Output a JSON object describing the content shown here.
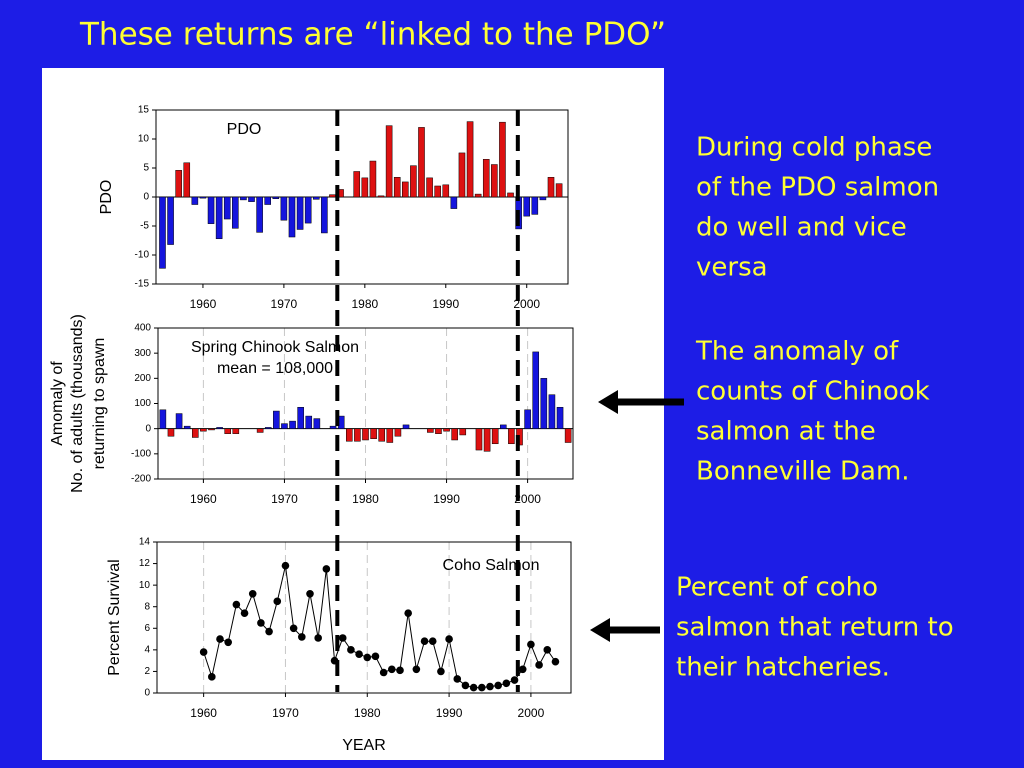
{
  "slide": {
    "title": "These returns are “linked to the PDO”",
    "notes": [
      [
        "During cold phase",
        "of the PDO salmon",
        "do well and vice",
        "versa"
      ],
      [
        "The anomaly of",
        "counts of Chinook",
        "salmon at the",
        "Bonneville Dam."
      ],
      [
        "Percent of coho",
        "salmon that return to",
        "their hatcheries."
      ]
    ]
  },
  "chart_data": [
    {
      "type": "bar",
      "annotation": "PDO",
      "ylabel": [
        "PDO"
      ],
      "x": [
        1955,
        1956,
        1957,
        1958,
        1959,
        1960,
        1961,
        1962,
        1963,
        1964,
        1965,
        1966,
        1967,
        1968,
        1969,
        1970,
        1971,
        1972,
        1973,
        1974,
        1975,
        1976,
        1977,
        1978,
        1979,
        1980,
        1981,
        1982,
        1983,
        1984,
        1985,
        1986,
        1987,
        1988,
        1989,
        1990,
        1991,
        1992,
        1993,
        1994,
        1995,
        1996,
        1997,
        1998,
        1999,
        2000,
        2001,
        2002,
        2003,
        2004
      ],
      "values": [
        -12.3,
        -8.2,
        4.6,
        5.9,
        -1.3,
        -0.2,
        -4.6,
        -7.2,
        -3.8,
        -5.4,
        -0.5,
        -0.8,
        -6.1,
        -1.3,
        -0.3,
        -4.0,
        -6.9,
        -5.6,
        -4.5,
        -0.4,
        -6.2,
        0.4,
        1.3,
        0,
        4.4,
        3.3,
        6.2,
        0.2,
        12.3,
        3.4,
        2.6,
        5.4,
        12.0,
        3.3,
        1.9,
        2.1,
        -2.0,
        7.6,
        13.0,
        0.5,
        6.5,
        5.6,
        12.9,
        0.7,
        -5.5,
        -3.3,
        -3.0,
        -0.5,
        3.4,
        2.3
      ],
      "positive_color": "#dd1111",
      "negative_color": "#1515dd",
      "xlim": [
        1954.2,
        2005.1
      ],
      "xticks": [
        1960,
        1970,
        1980,
        1990,
        2000
      ],
      "ylim": [
        -15,
        15
      ],
      "yticks": [
        -15,
        -10,
        -5,
        0,
        5,
        10,
        15
      ],
      "regime_shifts": [
        1976.6,
        1998.9
      ]
    },
    {
      "type": "bar",
      "annotation": [
        "Spring Chinook Salmon",
        "mean = 108,000"
      ],
      "ylabel": [
        "Amomaly of",
        "No. of adults (thousands)",
        "returning to spawn"
      ],
      "x": [
        1955,
        1956,
        1957,
        1958,
        1959,
        1960,
        1961,
        1962,
        1963,
        1964,
        1965,
        1966,
        1967,
        1968,
        1969,
        1970,
        1971,
        1972,
        1973,
        1974,
        1975,
        1976,
        1977,
        1978,
        1979,
        1980,
        1981,
        1982,
        1983,
        1984,
        1985,
        1986,
        1987,
        1988,
        1989,
        1990,
        1991,
        1992,
        1993,
        1994,
        1995,
        1996,
        1997,
        1998,
        1999,
        2000,
        2001,
        2002,
        2003,
        2004,
        2005
      ],
      "values": [
        75,
        -30,
        60,
        10,
        -35,
        -10,
        -5,
        5,
        -20,
        -20,
        0,
        0,
        -15,
        5,
        70,
        20,
        30,
        85,
        50,
        40,
        0,
        10,
        50,
        -50,
        -50,
        -45,
        -40,
        -50,
        -55,
        -30,
        15,
        0,
        0,
        -15,
        -20,
        -10,
        -45,
        -25,
        0,
        -85,
        -90,
        -60,
        15,
        -60,
        -65,
        75,
        305,
        200,
        135,
        85,
        -55
      ],
      "positive_color": "#1515dd",
      "negative_color": "#dd1111",
      "xlim": [
        1954.4,
        2005.6
      ],
      "xticks": [
        1960,
        1970,
        1980,
        1990,
        2000
      ],
      "ylim": [
        -200,
        400
      ],
      "yticks": [
        -200,
        -100,
        0,
        100,
        200,
        300,
        400
      ],
      "xgrid": true
    },
    {
      "type": "line",
      "annotation": "Coho Salmon",
      "ylabel": [
        "Percent Survival"
      ],
      "xlabel": "YEAR",
      "x": [
        1960,
        1961,
        1962,
        1963,
        1964,
        1965,
        1966,
        1967,
        1968,
        1969,
        1970,
        1971,
        1972,
        1973,
        1974,
        1975,
        1976,
        1977,
        1978,
        1979,
        1980,
        1981,
        1982,
        1983,
        1984,
        1985,
        1986,
        1987,
        1988,
        1989,
        1990,
        1991,
        1992,
        1993,
        1994,
        1995,
        1996,
        1997,
        1998,
        1999,
        2000,
        2001,
        2002,
        2003
      ],
      "values": [
        3.8,
        1.5,
        5.0,
        4.7,
        8.2,
        7.4,
        9.2,
        6.5,
        5.7,
        8.5,
        11.8,
        6.0,
        5.2,
        9.2,
        5.1,
        11.5,
        3.0,
        5.1,
        4.0,
        3.6,
        3.3,
        3.4,
        1.9,
        2.2,
        2.1,
        7.4,
        2.2,
        4.8,
        4.8,
        2.0,
        5.0,
        1.3,
        0.7,
        0.5,
        0.5,
        0.6,
        0.7,
        0.9,
        1.2,
        2.2,
        4.5,
        2.6,
        4.0,
        2.9
      ],
      "color": "#000000",
      "xlim": [
        1954.3,
        2004.9
      ],
      "xticks": [
        1960,
        1970,
        1980,
        1990,
        2000
      ],
      "ylim": [
        0,
        14
      ],
      "yticks": [
        0,
        2,
        4,
        6,
        8,
        10,
        12,
        14
      ],
      "xgrid": true
    }
  ]
}
